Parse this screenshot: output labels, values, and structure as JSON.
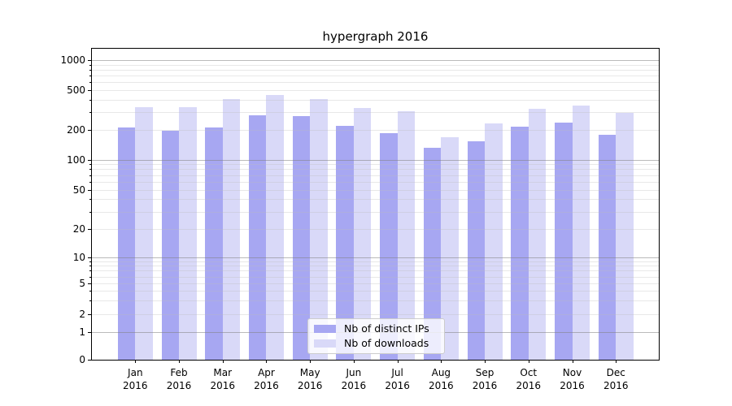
{
  "title": "hypergraph 2016",
  "legend": {
    "items": [
      {
        "label": "Nb of distinct IPs",
        "color": "#a7a7f2"
      },
      {
        "label": "Nb of downloads",
        "color": "#d9d9f8"
      }
    ]
  },
  "chart_data": {
    "type": "bar",
    "title": "hypergraph 2016",
    "yscale": "log (with 0 baseline)",
    "grid": true,
    "legend_position": "inside lower center",
    "categories": [
      "Jan 2016",
      "Feb 2016",
      "Mar 2016",
      "Apr 2016",
      "May 2016",
      "Jun 2016",
      "Jul 2016",
      "Aug 2016",
      "Sep 2016",
      "Oct 2016",
      "Nov 2016",
      "Dec 2016"
    ],
    "x_tick_line1": [
      "Jan",
      "Feb",
      "Mar",
      "Apr",
      "May",
      "Jun",
      "Jul",
      "Aug",
      "Sep",
      "Oct",
      "Nov",
      "Dec"
    ],
    "x_tick_line2": [
      "2016",
      "2016",
      "2016",
      "2016",
      "2016",
      "2016",
      "2016",
      "2016",
      "2016",
      "2016",
      "2016",
      "2016"
    ],
    "series": [
      {
        "name": "Nb of distinct IPs",
        "color": "#a7a7f2",
        "values": [
          210,
          195,
          210,
          279,
          273,
          218,
          184,
          131,
          152,
          214,
          235,
          177
        ]
      },
      {
        "name": "Nb of downloads",
        "color": "#d9d9f8",
        "values": [
          336,
          334,
          406,
          446,
          406,
          332,
          308,
          170,
          230,
          324,
          349,
          295
        ]
      }
    ],
    "yticks": [
      0,
      1,
      2,
      5,
      10,
      20,
      50,
      100,
      200,
      500,
      1000
    ],
    "ylim": [
      0,
      1000
    ],
    "xlabel": "",
    "ylabel": ""
  }
}
